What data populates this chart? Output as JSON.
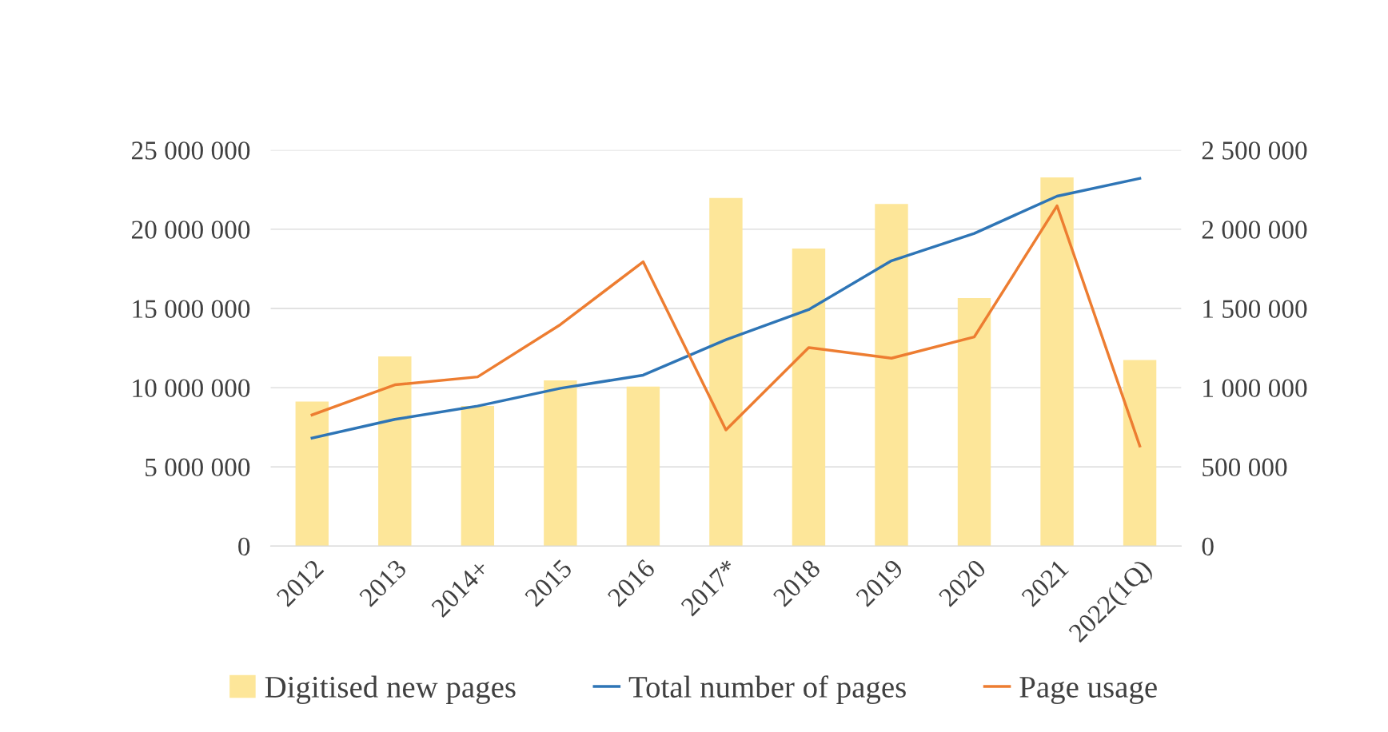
{
  "chart_data": {
    "type": "bar",
    "categories": [
      "2012",
      "2013",
      "2014+",
      "2015",
      "2016",
      "2017*",
      "2018",
      "2019",
      "2020",
      "2021",
      "2022(1Q)"
    ],
    "series": [
      {
        "name": "Digitised new pages",
        "axis": "y2",
        "color": "#fde699",
        "values": [
          912000,
          1197000,
          884000,
          1046000,
          1007000,
          2198000,
          1879000,
          2159000,
          1566000,
          2327000,
          1174000
        ]
      },
      {
        "name": "Total number of pages",
        "type": "line",
        "axis": "y",
        "color": "#2e75b6",
        "values": [
          6820000,
          8000000,
          8840000,
          9960000,
          10790000,
          13030000,
          14930000,
          18010000,
          19740000,
          22090000,
          23210000
        ]
      },
      {
        "name": "Page usage",
        "type": "line",
        "axis": "y2",
        "color": "#ed7d31",
        "values": [
          828000,
          1018000,
          1068000,
          1398000,
          1795000,
          733000,
          1253000,
          1186000,
          1320000,
          2148000,
          632000
        ]
      }
    ],
    "ylim": [
      0,
      25000000
    ],
    "yticks": [
      {
        "value": 0,
        "label": "0"
      },
      {
        "value": 5000000,
        "label": "5 000 000"
      },
      {
        "value": 10000000,
        "label": "10 000 000"
      },
      {
        "value": 15000000,
        "label": "15 000 000"
      },
      {
        "value": 20000000,
        "label": "20 000 000"
      },
      {
        "value": 25000000,
        "label": "25 000 000"
      }
    ],
    "y2lim": [
      0,
      2500000
    ],
    "y2ticks": [
      {
        "value": 0,
        "label": "0"
      },
      {
        "value": 500000,
        "label": "500 000"
      },
      {
        "value": 1000000,
        "label": "1 000 000"
      },
      {
        "value": 1500000,
        "label": "1 500 000"
      },
      {
        "value": 2000000,
        "label": "2 000 000"
      },
      {
        "value": 2500000,
        "label": "2 500 000"
      }
    ],
    "grid": "y",
    "legend": "bottom",
    "marker": "none",
    "line_style": "solid"
  }
}
